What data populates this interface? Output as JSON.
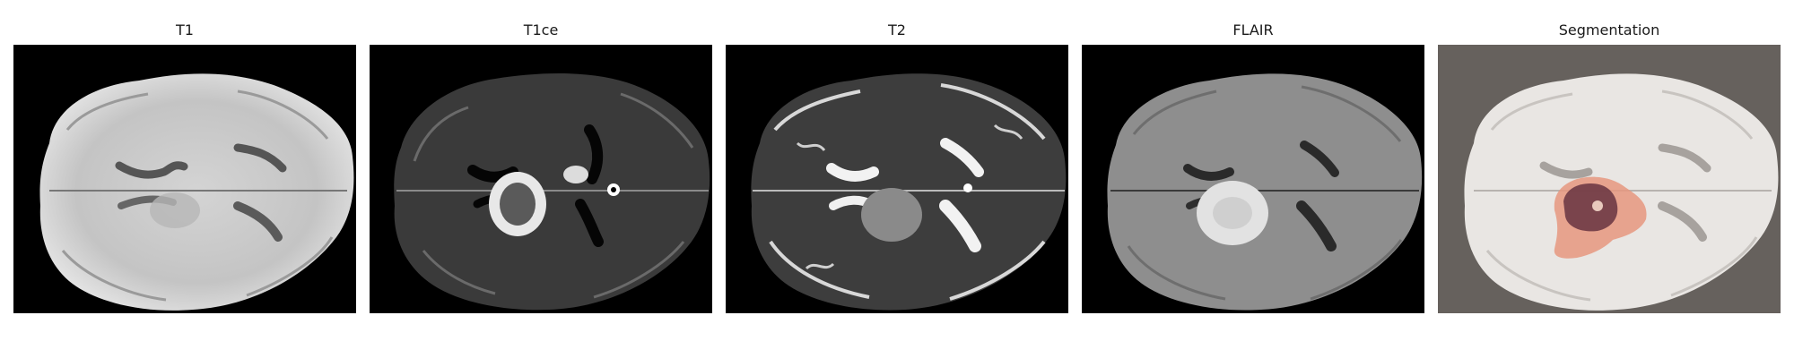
{
  "figure": {
    "panels": [
      {
        "title": "T1"
      },
      {
        "title": "T1ce"
      },
      {
        "title": "T2"
      },
      {
        "title": "FLAIR"
      },
      {
        "title": "Segmentation"
      }
    ]
  }
}
